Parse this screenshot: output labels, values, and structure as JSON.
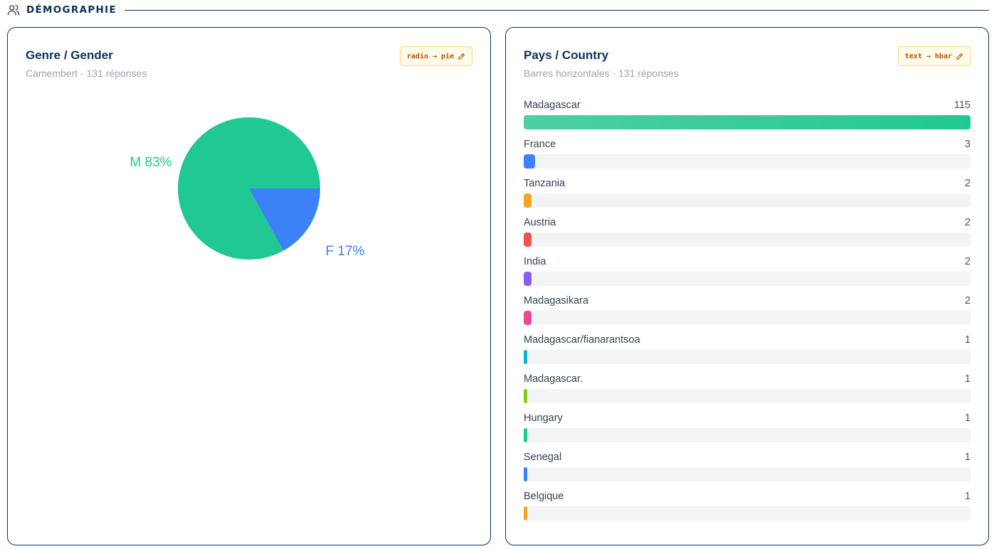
{
  "section": {
    "title": "DÉMOGRAPHIE",
    "icon": "users-icon"
  },
  "cards": {
    "gender": {
      "title": "Genre / Gender",
      "subtitle": "Camembert · 131 réponses",
      "badge": "radio → pie",
      "badge_icon": "pencil-icon"
    },
    "country": {
      "title": "Pays / Country",
      "subtitle": "Barres horizontales · 131 réponses",
      "badge": "text → hbar",
      "badge_icon": "pencil-icon"
    }
  },
  "colors": {
    "navy": "#0f2f5a",
    "badge_text": "#b45309",
    "track": "#f3f4f6"
  },
  "chart_data": [
    {
      "type": "pie",
      "title": "Genre / Gender",
      "slices": [
        {
          "label": "M 83%",
          "value": 83,
          "color": "#22c893"
        },
        {
          "label": "F 17%",
          "value": 17,
          "color": "#3b82f6"
        }
      ]
    },
    {
      "type": "bar",
      "orientation": "horizontal",
      "title": "Pays / Country",
      "max": 115,
      "bars": [
        {
          "label": "Madagascar",
          "value": 115,
          "color": "#22c893"
        },
        {
          "label": "France",
          "value": 3,
          "color": "#3b82f6"
        },
        {
          "label": "Tanzania",
          "value": 2,
          "color": "#f5a524"
        },
        {
          "label": "Austria",
          "value": 2,
          "color": "#ef5350"
        },
        {
          "label": "India",
          "value": 2,
          "color": "#8b5cf6"
        },
        {
          "label": "Madagasikara",
          "value": 2,
          "color": "#ec4899"
        },
        {
          "label": "Madagascar/fianarantsoa",
          "value": 1,
          "color": "#06b6d4"
        },
        {
          "label": "Madagascar.",
          "value": 1,
          "color": "#84cc16"
        },
        {
          "label": "Hungary",
          "value": 1,
          "color": "#22c893"
        },
        {
          "label": "Senegal",
          "value": 1,
          "color": "#3b82f6"
        },
        {
          "label": "Belgique",
          "value": 1,
          "color": "#f5a524"
        }
      ]
    }
  ]
}
